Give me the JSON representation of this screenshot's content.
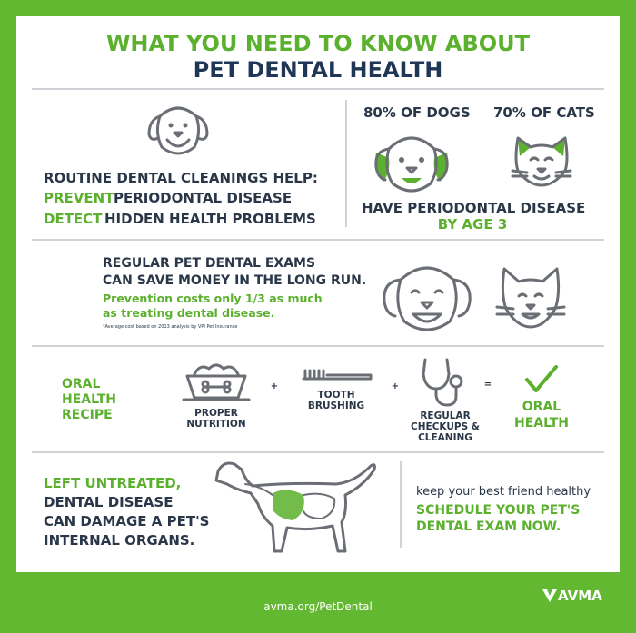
{
  "header": {
    "line1": "WHAT YOU NEED TO KNOW ABOUT",
    "line2": "PET DENTAL HEALTH"
  },
  "cleanings": {
    "heading": "ROUTINE DENTAL CLEANINGS HELP:",
    "items": [
      {
        "verb": "PREVENT",
        "rest": "PERIODONTAL DISEASE"
      },
      {
        "verb": "DETECT",
        "rest": "HIDDEN HEALTH PROBLEMS"
      }
    ]
  },
  "stats": {
    "dogs": "80% OF DOGS",
    "cats": "70% OF CATS",
    "caption": "HAVE PERIODONTAL DISEASE",
    "age": "BY AGE 3"
  },
  "exams": {
    "line1": "REGULAR PET DENTAL EXAMS",
    "line2": "CAN SAVE MONEY IN THE LONG RUN.",
    "note1": "Prevention costs only 1/3 as much",
    "note2": "as treating dental disease.",
    "footnote": "*Average cost based on 2013 analysis by VPI Pet Insurance"
  },
  "recipe": {
    "title": [
      "ORAL",
      "HEALTH",
      "RECIPE"
    ],
    "nutrition": [
      "PROPER",
      "NUTRITION"
    ],
    "plus1": "+",
    "brushing": [
      "TOOTH",
      "BRUSHING"
    ],
    "plus2": "+",
    "checkups": [
      "REGULAR",
      "CHECKUPS &",
      "CLEANING"
    ],
    "equals": "=",
    "result": [
      "ORAL",
      "HEALTH"
    ]
  },
  "untreated": {
    "line1": "LEFT UNTREATED,",
    "line2": "DENTAL DISEASE",
    "line3": "CAN DAMAGE A PET'S",
    "line4": "INTERNAL ORGANS."
  },
  "cta": {
    "line1": "keep your best friend healthy",
    "line2": "SCHEDULE YOUR PET'S",
    "line3": "DENTAL EXAM NOW."
  },
  "footer": {
    "url": "avma.org/PetDental",
    "logo": "AVMA"
  }
}
